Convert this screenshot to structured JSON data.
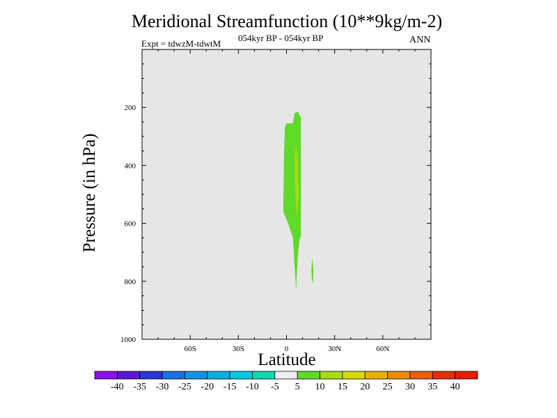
{
  "chart_data": {
    "type": "heatmap",
    "title": "Meridional Streamfunction (10**9kg/m-2)",
    "subtitle": "054kyr BP - 054kyr BP",
    "experiment": "Expt = tdwzM-tdwtM",
    "season": "ANN",
    "xlabel": "Latitude",
    "ylabel": "Pressure (in hPa)",
    "x_range": [
      -90,
      90
    ],
    "y_range": [
      0,
      1000
    ],
    "y_reversed": true,
    "x_ticks": [
      {
        "value": -60,
        "label": "60S"
      },
      {
        "value": -30,
        "label": "30S"
      },
      {
        "value": 0,
        "label": "0"
      },
      {
        "value": 30,
        "label": "30N"
      },
      {
        "value": 60,
        "label": "60N"
      }
    ],
    "y_ticks": [
      {
        "value": 200,
        "label": "200"
      },
      {
        "value": 400,
        "label": "400"
      },
      {
        "value": 600,
        "label": "600"
      },
      {
        "value": 800,
        "label": "800"
      },
      {
        "value": 1000,
        "label": "1000"
      }
    ],
    "background_color": "#e6e6e6",
    "contours": [
      {
        "level": "5 to 10",
        "color": "#5fda2a",
        "points": [
          [
            -2,
            560
          ],
          [
            -1.5,
            350
          ],
          [
            -1,
            270
          ],
          [
            0,
            255
          ],
          [
            4,
            255
          ],
          [
            5,
            220
          ],
          [
            7,
            215
          ],
          [
            9,
            235
          ],
          [
            9,
            640
          ],
          [
            8,
            660
          ],
          [
            7,
            720
          ],
          [
            6,
            830
          ],
          [
            5.5,
            790
          ],
          [
            4,
            650
          ],
          [
            1,
            600
          ]
        ]
      },
      {
        "level": "10 to 15",
        "color": "#a6dc18",
        "points": [
          [
            5,
            380
          ],
          [
            6,
            330
          ],
          [
            7,
            380
          ],
          [
            7.5,
            500
          ],
          [
            6.5,
            580
          ],
          [
            5.5,
            500
          ]
        ]
      },
      {
        "level": "5 to 10",
        "color": "#5fda2a",
        "points": [
          [
            16,
            720
          ],
          [
            16.8,
            760
          ],
          [
            16.5,
            810
          ],
          [
            15.8,
            790
          ],
          [
            15.5,
            760
          ]
        ]
      }
    ],
    "colorbar": {
      "labels": [
        "-40",
        "-35",
        "-30",
        "-25",
        "-20",
        "-15",
        "-10",
        "-5",
        "5",
        "10",
        "15",
        "20",
        "25",
        "30",
        "35",
        "40"
      ],
      "colors": [
        "#8a14e6",
        "#5a18d2",
        "#2a35d6",
        "#1f6fe0",
        "#1593e0",
        "#0aafe0",
        "#05c8d8",
        "#10d8a8",
        "#efefef",
        "#5fda2a",
        "#a6dc18",
        "#d8d80a",
        "#e6b000",
        "#e88a0a",
        "#e86010",
        "#e03008",
        "#e61d05"
      ]
    }
  }
}
